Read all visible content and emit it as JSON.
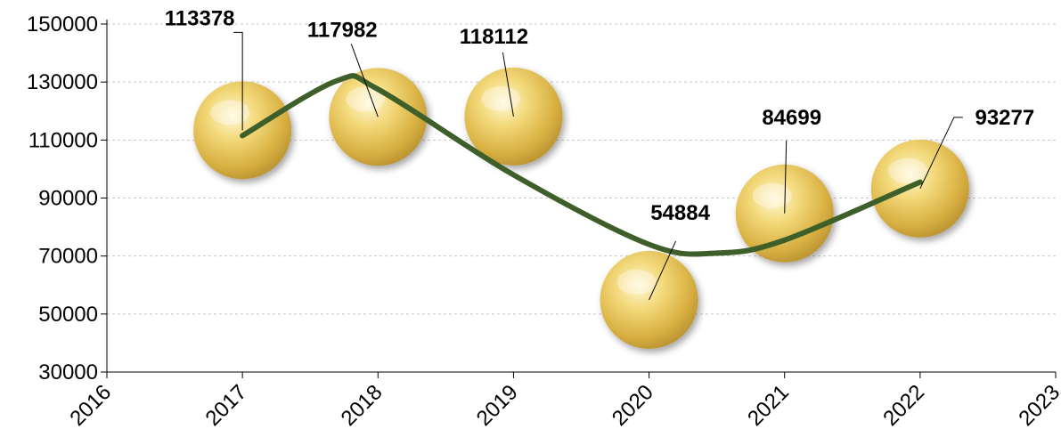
{
  "chart_data": {
    "type": "scatter",
    "title": "",
    "xlabel": "",
    "ylabel": "",
    "xlim": [
      2016,
      2023
    ],
    "ylim": [
      30000,
      150000
    ],
    "x_ticks": [
      "2016",
      "2017",
      "2018",
      "2019",
      "2020",
      "2021",
      "2022",
      "2023"
    ],
    "y_ticks": [
      "30000",
      "50000",
      "70000",
      "90000",
      "110000",
      "130000",
      "150000"
    ],
    "grid": true,
    "legend": "none",
    "colors": {
      "bubble": "#e8c85a",
      "trend_line": "#3f5f2a",
      "grid": "#c8c8c8"
    },
    "series": [
      {
        "x": [
          2017,
          2018,
          2019,
          2020,
          2021,
          2022
        ],
        "values": [
          113378,
          117982,
          118112,
          54884,
          84699,
          93277
        ],
        "labels": [
          "113378",
          "117982",
          "118112",
          "54884",
          "84699",
          "93277"
        ]
      }
    ],
    "trendline": {
      "type": "polynomial",
      "x": [
        2017,
        2017.7,
        2018,
        2019,
        2020,
        2020.5,
        2021,
        2022
      ],
      "values": [
        111500,
        130500,
        127500,
        98000,
        74000,
        71000,
        75500,
        95500
      ]
    }
  }
}
